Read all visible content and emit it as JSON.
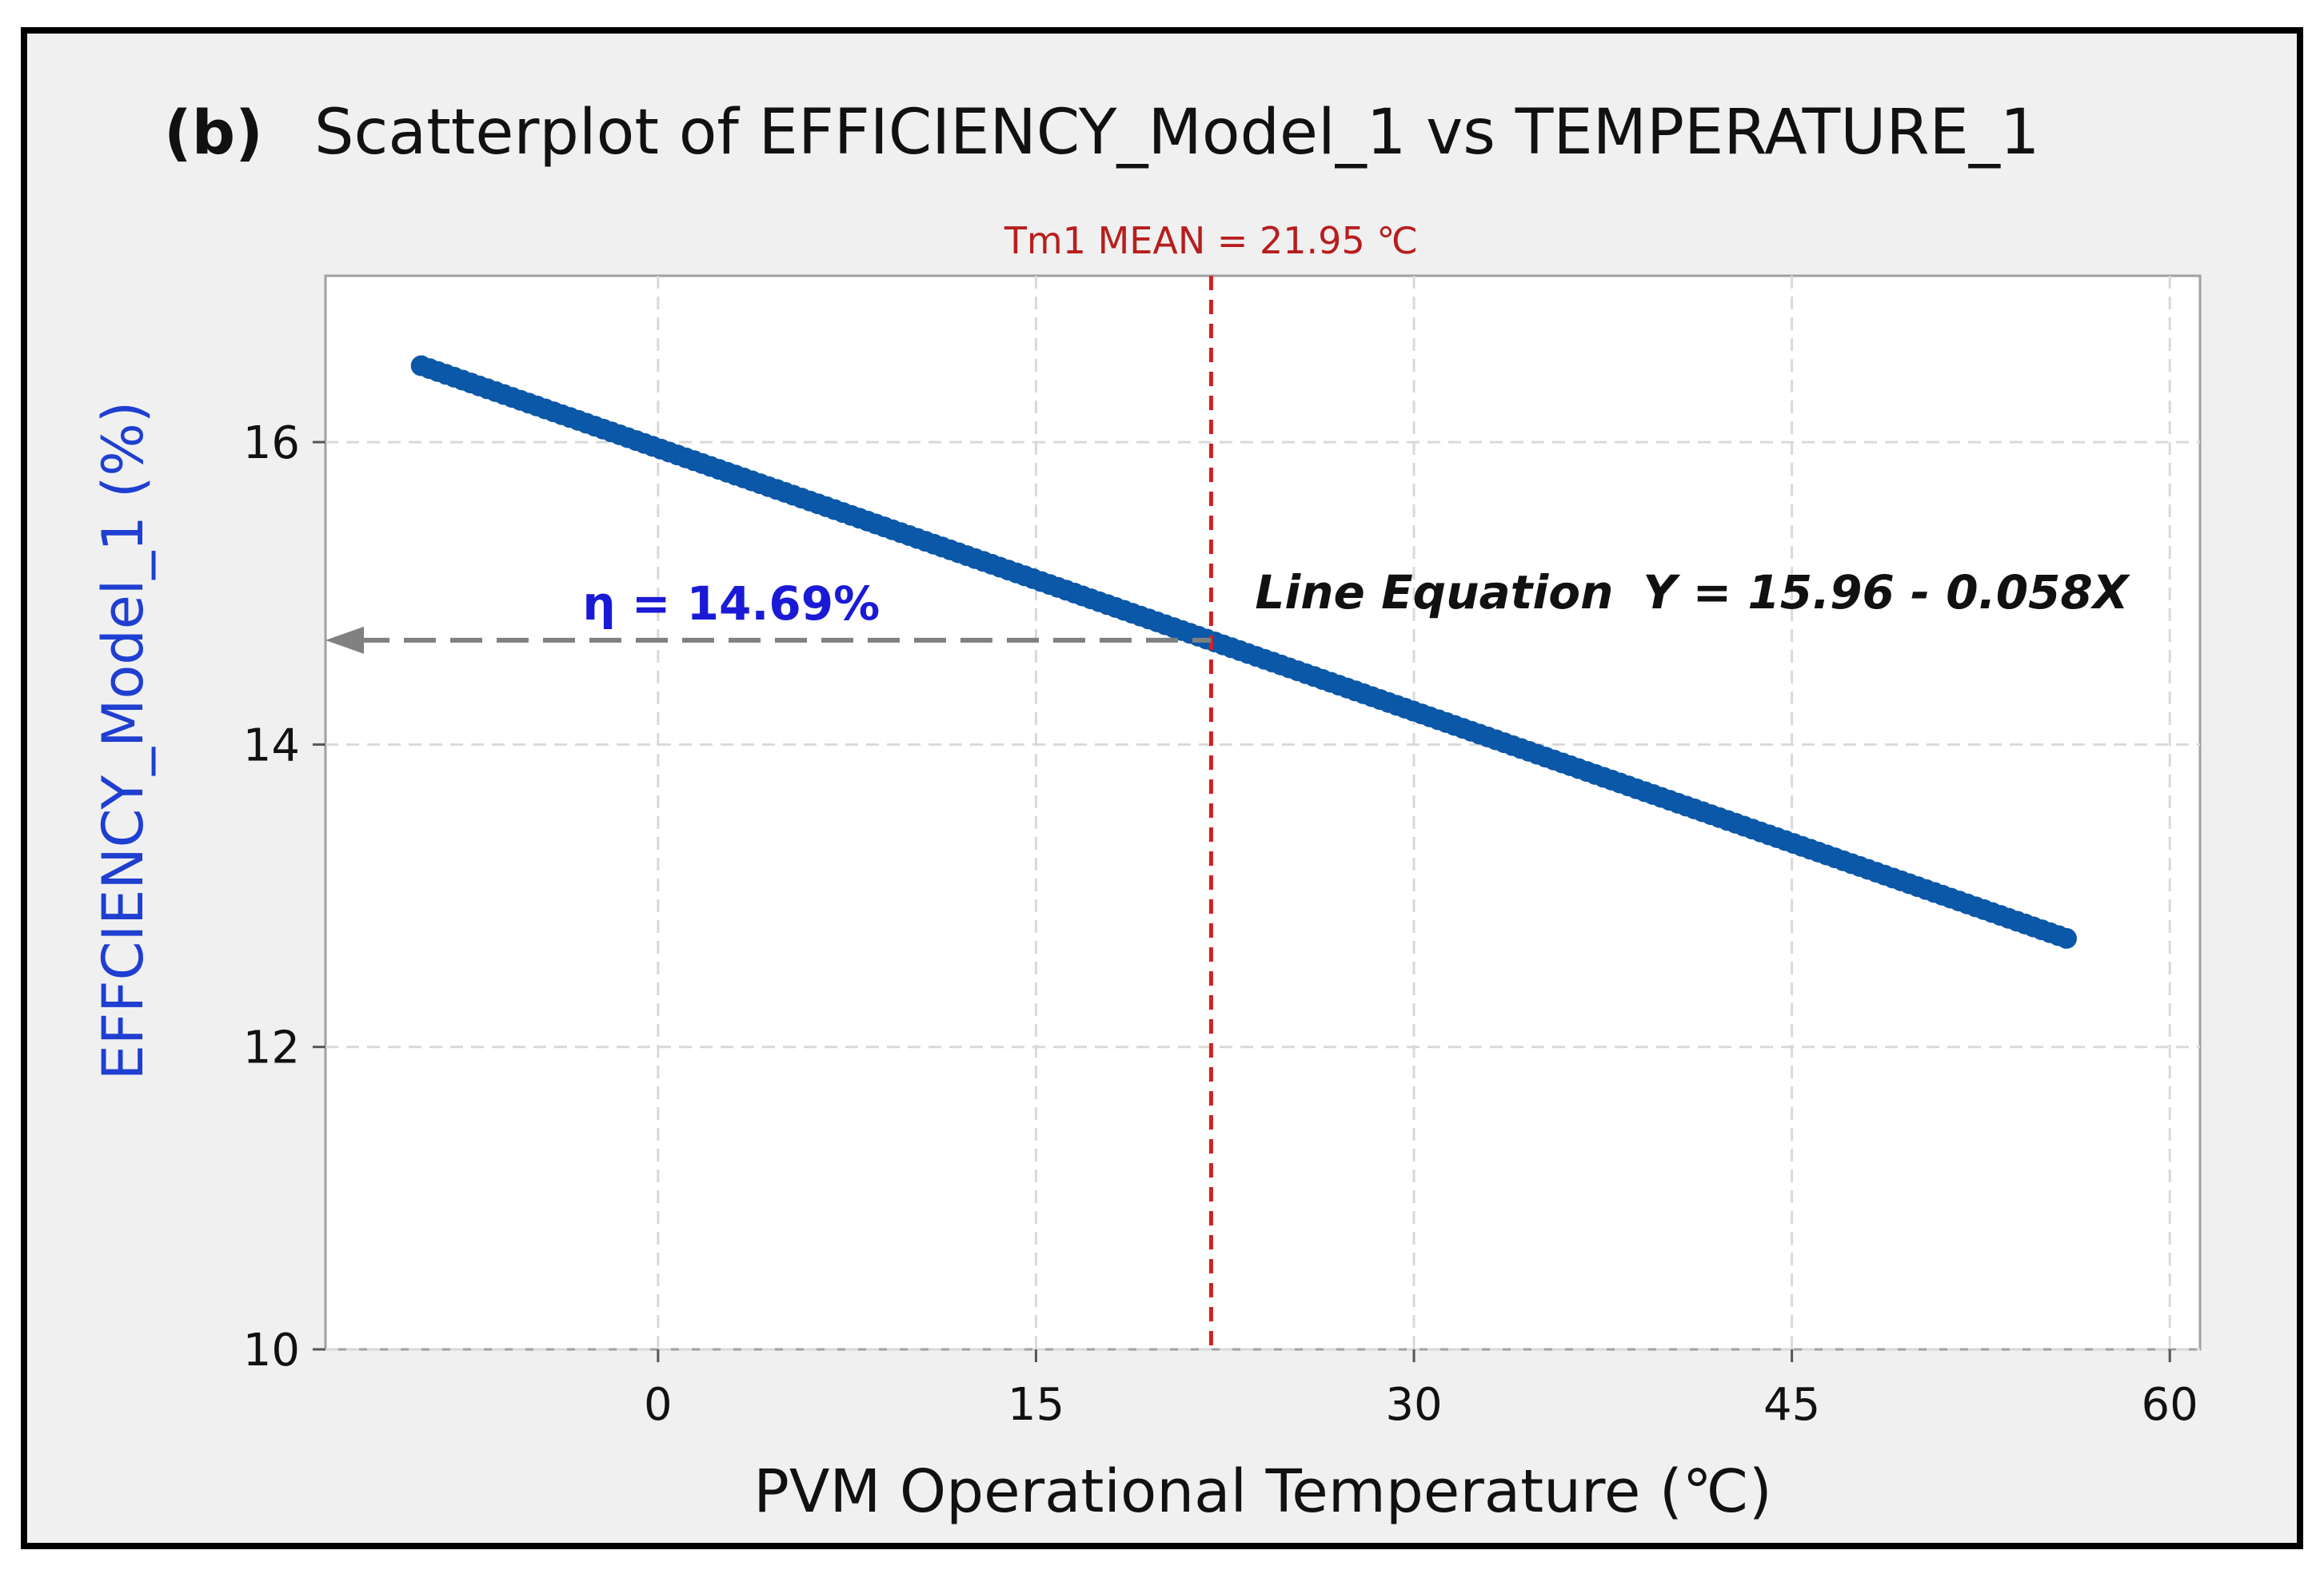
{
  "figure": {
    "panel_label": "(b)",
    "title": "Scatterplot of EFFICIENCY_Model_1 vs TEMPERATURE_1"
  },
  "colors": {
    "frame_bg": "#f0f0f0",
    "plot_bg": "#ffffff",
    "points": "#0b57a8",
    "mean_line": "#d61f1f",
    "mean_label": "#b81d1d",
    "arrow": "#808080",
    "eta_label": "#1a1ad6",
    "ylabel": "#1f3fd1",
    "grid": "#d9d9d9",
    "text": "#111111"
  },
  "chart_data": {
    "type": "scatter",
    "title": "Scatterplot of EFFICIENCY_Model_1 vs TEMPERATURE_1",
    "xlabel": "PVM Operational Temperature (℃)",
    "ylabel": "EFFCIENCY_Model_1 (%)",
    "xlim": [
      -13.2,
      61.2
    ],
    "ylim": [
      10,
      17.1
    ],
    "xticks": [
      0,
      15,
      30,
      45,
      60
    ],
    "xtick_labels": [
      "0",
      "15",
      "30",
      "45",
      "60"
    ],
    "yticks": [
      10,
      12,
      14,
      16
    ],
    "ytick_labels": [
      "10",
      "12",
      "14",
      "16"
    ],
    "grid": true,
    "x_range_points": [
      -9.4,
      55.9
    ],
    "line_intercept": 15.96,
    "line_slope": -0.058,
    "mean_x": 21.95,
    "mean_label": "Tm1 MEAN = 21.95 ℃",
    "eta_value": 14.69,
    "eta_label": "η = 14.69%",
    "equation_label": "Line Equation",
    "equation_text": "Y = 15.96 - 0.058X"
  }
}
